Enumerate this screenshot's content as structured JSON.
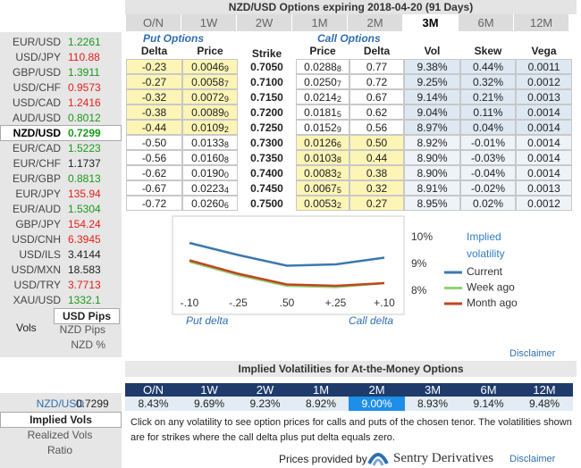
{
  "sidebar": {
    "pairs": [
      {
        "name": "EUR/USD",
        "value": "1.2261",
        "color": "#1a9a1a"
      },
      {
        "name": "USD/JPY",
        "value": "110.88",
        "color": "#e3201b"
      },
      {
        "name": "GBP/USD",
        "value": "1.3911",
        "color": "#1a9a1a"
      },
      {
        "name": "USD/CHF",
        "value": "0.9573",
        "color": "#e3201b"
      },
      {
        "name": "USD/CAD",
        "value": "1.2416",
        "color": "#e3201b"
      },
      {
        "name": "AUD/USD",
        "value": "0.8012",
        "color": "#1a9a1a"
      },
      {
        "name": "NZD/USD",
        "value": "0.7299",
        "color": "#1a9a1a",
        "selected": true
      },
      {
        "name": "EUR/CAD",
        "value": "1.5223",
        "color": "#1a9a1a"
      },
      {
        "name": "EUR/CHF",
        "value": "1.1737",
        "color": "#222222"
      },
      {
        "name": "EUR/GBP",
        "value": "0.8813",
        "color": "#1a9a1a"
      },
      {
        "name": "EUR/JPY",
        "value": "135.94",
        "color": "#e3201b"
      },
      {
        "name": "EUR/AUD",
        "value": "1.5304",
        "color": "#1a9a1a"
      },
      {
        "name": "GBP/JPY",
        "value": "154.24",
        "color": "#e3201b"
      },
      {
        "name": "USD/CNH",
        "value": "6.3945",
        "color": "#e3201b"
      },
      {
        "name": "USD/ILS",
        "value": "3.4144",
        "color": "#222222"
      },
      {
        "name": "USD/MXN",
        "value": "18.583",
        "color": "#222222"
      },
      {
        "name": "USD/TRY",
        "value": "3.7713",
        "color": "#e3201b"
      },
      {
        "name": "XAU/USD",
        "value": "1332.1",
        "color": "#1a9a1a"
      }
    ],
    "units": {
      "usd_pips": "USD Pips",
      "vols": "Vols",
      "nzd_pips": "NZD Pips",
      "nzd_pct": "NZD %"
    },
    "atm_pair": {
      "name": "NZD/USD",
      "value": "0.7299"
    },
    "atm_modes": {
      "implied": "Implied Vols",
      "realized": "Realized Vols",
      "ratio": "Ratio"
    }
  },
  "options": {
    "title": "NZD/USD Options expiring 2018-04-20 (91 Days)",
    "tenors": [
      {
        "label": "O/N"
      },
      {
        "label": "1W"
      },
      {
        "label": "2W"
      },
      {
        "label": "1M"
      },
      {
        "label": "2M"
      },
      {
        "label": "3M",
        "selected": true
      },
      {
        "label": "6M"
      },
      {
        "label": "12M"
      }
    ],
    "put_header": "Put Options",
    "call_header": "Call Options",
    "columns": [
      "Delta",
      "Price",
      "Strike",
      "Price",
      "Delta",
      "Vol",
      "Skew",
      "Vega"
    ],
    "rows": [
      {
        "put_delta": "-0.23",
        "put_price": {
          "main": "0.0046",
          "pip": "9"
        },
        "strike": "0.7050",
        "call_price": {
          "main": "0.0288",
          "pip": "8"
        },
        "call_delta": "0.77",
        "vol": "9.38%",
        "skew": "0.44%",
        "vega": "0.0011"
      },
      {
        "put_delta": "-0.27",
        "put_price": {
          "main": "0.0058",
          "pip": "7"
        },
        "strike": "0.7100",
        "call_price": {
          "main": "0.0250",
          "pip": "7"
        },
        "call_delta": "0.72",
        "vol": "9.25%",
        "skew": "0.32%",
        "vega": "0.0012"
      },
      {
        "put_delta": "-0.32",
        "put_price": {
          "main": "0.0072",
          "pip": "9"
        },
        "strike": "0.7150",
        "call_price": {
          "main": "0.0214",
          "pip": "2"
        },
        "call_delta": "0.67",
        "vol": "9.14%",
        "skew": "0.21%",
        "vega": "0.0013"
      },
      {
        "put_delta": "-0.38",
        "put_price": {
          "main": "0.0089",
          "pip": "0"
        },
        "strike": "0.7200",
        "call_price": {
          "main": "0.0181",
          "pip": "5"
        },
        "call_delta": "0.62",
        "vol": "9.04%",
        "skew": "0.11%",
        "vega": "0.0014"
      },
      {
        "put_delta": "-0.44",
        "put_price": {
          "main": "0.0109",
          "pip": "2"
        },
        "strike": "0.7250",
        "call_price": {
          "main": "0.0152",
          "pip": "9"
        },
        "call_delta": "0.56",
        "vol": "8.97%",
        "skew": "0.04%",
        "vega": "0.0014"
      },
      {
        "put_delta": "-0.50",
        "put_price": {
          "main": "0.0133",
          "pip": "8"
        },
        "strike": "0.7300",
        "call_price": {
          "main": "0.0126",
          "pip": "6"
        },
        "call_delta": "0.50",
        "vol": "8.92%",
        "skew": "-0.01%",
        "vega": "0.0014"
      },
      {
        "put_delta": "-0.56",
        "put_price": {
          "main": "0.0160",
          "pip": "8"
        },
        "strike": "0.7350",
        "call_price": {
          "main": "0.0103",
          "pip": "8"
        },
        "call_delta": "0.44",
        "vol": "8.90%",
        "skew": "-0.03%",
        "vega": "0.0014"
      },
      {
        "put_delta": "-0.62",
        "put_price": {
          "main": "0.0190",
          "pip": "0"
        },
        "strike": "0.7400",
        "call_price": {
          "main": "0.0083",
          "pip": "2"
        },
        "call_delta": "0.38",
        "vol": "8.90%",
        "skew": "-0.04%",
        "vega": "0.0014"
      },
      {
        "put_delta": "-0.67",
        "put_price": {
          "main": "0.0223",
          "pip": "4"
        },
        "strike": "0.7450",
        "call_price": {
          "main": "0.0067",
          "pip": "5"
        },
        "call_delta": "0.32",
        "vol": "8.91%",
        "skew": "-0.02%",
        "vega": "0.0013"
      },
      {
        "put_delta": "-0.72",
        "put_price": {
          "main": "0.0260",
          "pip": "6"
        },
        "strike": "0.7500",
        "call_price": {
          "main": "0.0053",
          "pip": "2"
        },
        "call_delta": "0.27",
        "vol": "8.95%",
        "skew": "0.02%",
        "vega": "0.0012"
      }
    ],
    "disclaimer": "Disclaimer"
  },
  "chart_data": {
    "type": "line",
    "title": "Implied volatility",
    "categories": [
      "-.10",
      "-.25",
      ".50",
      "+.25",
      "+.10"
    ],
    "series": [
      {
        "name": "Current",
        "color": "#3b78b0",
        "values": [
          9.8,
          9.35,
          8.95,
          9.0,
          9.25
        ]
      },
      {
        "name": "Week ago",
        "color": "#8fd27a",
        "values": [
          9.1,
          8.6,
          8.2,
          8.15,
          8.3
        ]
      },
      {
        "name": "Month ago",
        "color": "#c0461d",
        "values": [
          9.15,
          8.65,
          8.25,
          8.2,
          8.3
        ]
      }
    ],
    "ylim": [
      7.75,
      10.75
    ],
    "yticks": [
      {
        "value": 8,
        "label": "8%"
      },
      {
        "value": 9,
        "label": "9%"
      },
      {
        "value": 10,
        "label": "10%"
      }
    ],
    "x_annotations": {
      "left": "Put delta",
      "right": "Call delta"
    }
  },
  "atm": {
    "title": "Implied Volatilities for At-the-Money Options",
    "cells": [
      {
        "tenor": "O/N",
        "vol": "8.43%"
      },
      {
        "tenor": "1W",
        "vol": "9.69%"
      },
      {
        "tenor": "2W",
        "vol": "9.23%"
      },
      {
        "tenor": "1M",
        "vol": "8.92%"
      },
      {
        "tenor": "2M",
        "vol": "9.00%",
        "selected": true
      },
      {
        "tenor": "3M",
        "vol": "8.93%"
      },
      {
        "tenor": "6M",
        "vol": "9.14%"
      },
      {
        "tenor": "12M",
        "vol": "9.48%"
      }
    ],
    "note": "Click on any volatility to see option prices for calls and puts of the chosen tenor. The volatilities shown are for strikes where the call delta plus put delta equals zero."
  },
  "footer": {
    "provided_by": "Prices provided by",
    "brand": "Sentry Derivatives",
    "disclaimer": "Disclaimer"
  }
}
